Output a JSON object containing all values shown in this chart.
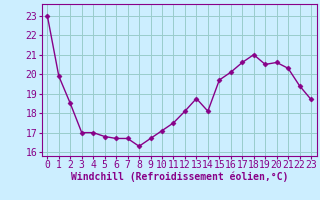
{
  "x": [
    0,
    1,
    2,
    3,
    4,
    5,
    6,
    7,
    8,
    9,
    10,
    11,
    12,
    13,
    14,
    15,
    16,
    17,
    18,
    19,
    20,
    21,
    22,
    23
  ],
  "y": [
    23.0,
    19.9,
    18.5,
    17.0,
    17.0,
    16.8,
    16.7,
    16.7,
    16.3,
    16.7,
    17.1,
    17.5,
    18.1,
    18.75,
    18.1,
    19.7,
    20.1,
    20.6,
    21.0,
    20.5,
    20.6,
    20.3,
    19.4,
    18.7
  ],
  "line_color": "#880088",
  "marker": "D",
  "marker_size": 2.5,
  "bg_color": "#cceeff",
  "grid_color": "#99cccc",
  "xlabel": "Windchill (Refroidissement éolien,°C)",
  "ylim": [
    15.8,
    23.6
  ],
  "xlim": [
    -0.5,
    23.5
  ],
  "yticks": [
    16,
    17,
    18,
    19,
    20,
    21,
    22,
    23
  ],
  "xticks": [
    0,
    1,
    2,
    3,
    4,
    5,
    6,
    7,
    8,
    9,
    10,
    11,
    12,
    13,
    14,
    15,
    16,
    17,
    18,
    19,
    20,
    21,
    22,
    23
  ],
  "xlabel_fontsize": 7,
  "tick_fontsize": 7,
  "line_width": 1.0,
  "spine_color": "#777777"
}
